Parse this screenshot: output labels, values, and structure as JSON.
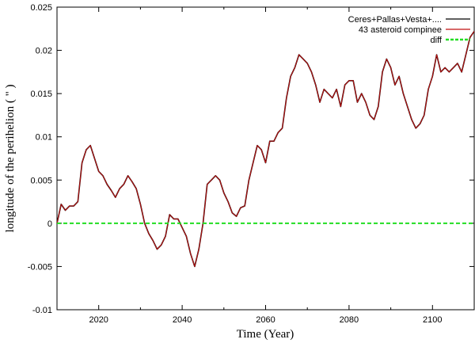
{
  "chart_data": {
    "type": "line",
    "title": "",
    "xlabel": "Time (Year)",
    "ylabel": "longitude of the perihelion ( \" )",
    "xlim": [
      2010,
      2110
    ],
    "ylim": [
      -0.01,
      0.025
    ],
    "grid": false,
    "legend_position": "top-right",
    "x_ticks": [
      2020,
      2040,
      2060,
      2080,
      2100
    ],
    "x_tick_labels": [
      "2020",
      "2040",
      "2060",
      "2080",
      "2100"
    ],
    "y_ticks": [
      -0.01,
      -0.005,
      0,
      0.005,
      0.01,
      0.015,
      0.02,
      0.025
    ],
    "y_tick_labels": [
      "-0.01",
      "-0.005",
      "0",
      "0.005",
      "0.01",
      "0.015",
      "0.02",
      "0.025"
    ],
    "series": [
      {
        "name": "Ceres+Pallas+Vesta+....",
        "color": "#000000",
        "style": "solid",
        "x": [
          2010,
          2011,
          2012,
          2013,
          2014,
          2015,
          2016,
          2017,
          2018,
          2019,
          2020,
          2021,
          2022,
          2023,
          2024,
          2025,
          2026,
          2027,
          2028,
          2029,
          2030,
          2031,
          2032,
          2033,
          2034,
          2035,
          2036,
          2037,
          2038,
          2039,
          2040,
          2041,
          2042,
          2043,
          2044,
          2045,
          2046,
          2047,
          2048,
          2049,
          2050,
          2051,
          2052,
          2053,
          2054,
          2055,
          2056,
          2057,
          2058,
          2059,
          2060,
          2061,
          2062,
          2063,
          2064,
          2065,
          2066,
          2067,
          2068,
          2069,
          2070,
          2071,
          2072,
          2073,
          2074,
          2075,
          2076,
          2077,
          2078,
          2079,
          2080,
          2081,
          2082,
          2083,
          2084,
          2085,
          2086,
          2087,
          2088,
          2089,
          2090,
          2091,
          2092,
          2093,
          2094,
          2095,
          2096,
          2097,
          2098,
          2099,
          2100,
          2101,
          2102,
          2103,
          2104,
          2105,
          2106,
          2107,
          2108,
          2109,
          2110
        ],
        "y": [
          0,
          0.0022,
          0.0015,
          0.002,
          0.002,
          0.0025,
          0.007,
          0.0085,
          0.009,
          0.0075,
          0.006,
          0.0055,
          0.0045,
          0.0038,
          0.003,
          0.004,
          0.0045,
          0.0055,
          0.0048,
          0.004,
          0.0022,
          0.0,
          -0.0012,
          -0.002,
          -0.003,
          -0.0025,
          -0.0015,
          0.001,
          0.0005,
          0.0005,
          -0.0005,
          -0.0015,
          -0.0035,
          -0.005,
          -0.003,
          0.0,
          0.0045,
          0.005,
          0.0055,
          0.005,
          0.0035,
          0.0025,
          0.0012,
          0.0008,
          0.0018,
          0.002,
          0.005,
          0.007,
          0.009,
          0.0085,
          0.007,
          0.0095,
          0.0095,
          0.0105,
          0.011,
          0.0145,
          0.017,
          0.018,
          0.0195,
          0.019,
          0.0185,
          0.0175,
          0.016,
          0.014,
          0.0155,
          0.015,
          0.0145,
          0.0155,
          0.0135,
          0.016,
          0.0165,
          0.0165,
          0.014,
          0.015,
          0.014,
          0.0125,
          0.012,
          0.0135,
          0.0175,
          0.019,
          0.018,
          0.016,
          0.017,
          0.015,
          0.0135,
          0.012,
          0.011,
          0.0115,
          0.0125,
          0.0155,
          0.017,
          0.0195,
          0.0175,
          0.018,
          0.0175,
          0.018,
          0.0185,
          0.0175,
          0.0195,
          0.0215,
          0.0222
        ]
      },
      {
        "name": "43 asteroid compinee",
        "color": "#c01010",
        "style": "solid",
        "x": [
          2010,
          2011,
          2012,
          2013,
          2014,
          2015,
          2016,
          2017,
          2018,
          2019,
          2020,
          2021,
          2022,
          2023,
          2024,
          2025,
          2026,
          2027,
          2028,
          2029,
          2030,
          2031,
          2032,
          2033,
          2034,
          2035,
          2036,
          2037,
          2038,
          2039,
          2040,
          2041,
          2042,
          2043,
          2044,
          2045,
          2046,
          2047,
          2048,
          2049,
          2050,
          2051,
          2052,
          2053,
          2054,
          2055,
          2056,
          2057,
          2058,
          2059,
          2060,
          2061,
          2062,
          2063,
          2064,
          2065,
          2066,
          2067,
          2068,
          2069,
          2070,
          2071,
          2072,
          2073,
          2074,
          2075,
          2076,
          2077,
          2078,
          2079,
          2080,
          2081,
          2082,
          2083,
          2084,
          2085,
          2086,
          2087,
          2088,
          2089,
          2090,
          2091,
          2092,
          2093,
          2094,
          2095,
          2096,
          2097,
          2098,
          2099,
          2100,
          2101,
          2102,
          2103,
          2104,
          2105,
          2106,
          2107,
          2108,
          2109,
          2110
        ],
        "y": [
          0,
          0.0022,
          0.0015,
          0.002,
          0.002,
          0.0025,
          0.007,
          0.0085,
          0.009,
          0.0075,
          0.006,
          0.0055,
          0.0045,
          0.0038,
          0.003,
          0.004,
          0.0045,
          0.0055,
          0.0048,
          0.004,
          0.0022,
          0.0,
          -0.0012,
          -0.002,
          -0.003,
          -0.0025,
          -0.0015,
          0.001,
          0.0005,
          0.0005,
          -0.0005,
          -0.0015,
          -0.0035,
          -0.005,
          -0.003,
          0.0,
          0.0045,
          0.005,
          0.0055,
          0.005,
          0.0035,
          0.0025,
          0.0012,
          0.0008,
          0.0018,
          0.002,
          0.005,
          0.007,
          0.009,
          0.0085,
          0.007,
          0.0095,
          0.0095,
          0.0105,
          0.011,
          0.0145,
          0.017,
          0.018,
          0.0195,
          0.019,
          0.0185,
          0.0175,
          0.016,
          0.014,
          0.0155,
          0.015,
          0.0145,
          0.0155,
          0.0135,
          0.016,
          0.0165,
          0.0165,
          0.014,
          0.015,
          0.014,
          0.0125,
          0.012,
          0.0135,
          0.0175,
          0.019,
          0.018,
          0.016,
          0.017,
          0.015,
          0.0135,
          0.012,
          0.011,
          0.0115,
          0.0125,
          0.0155,
          0.017,
          0.0195,
          0.0175,
          0.018,
          0.0175,
          0.018,
          0.0185,
          0.0175,
          0.0195,
          0.0215,
          0.0222
        ]
      },
      {
        "name": "diff",
        "color": "#22dd22",
        "style": "dashed",
        "x": [
          2010,
          2110
        ],
        "y": [
          0,
          0
        ]
      }
    ]
  }
}
